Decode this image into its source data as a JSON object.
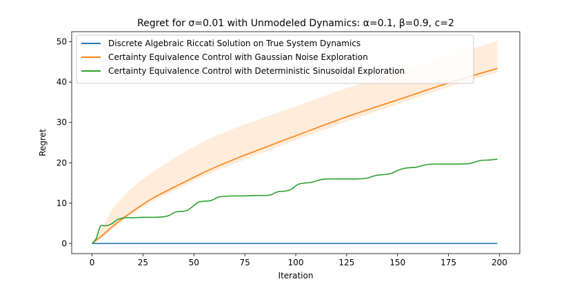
{
  "chart_data": {
    "type": "line",
    "title": "Regret for σ=0.01 with Unmodeled Dynamics: α=0.1, β=0.9, c=2",
    "xlabel": "Iteration",
    "ylabel": "Regret",
    "xlim": [
      -10,
      210
    ],
    "ylim": [
      -2.5,
      52.5
    ],
    "xticks": [
      0,
      25,
      50,
      75,
      100,
      125,
      150,
      175,
      200
    ],
    "yticks": [
      0,
      10,
      20,
      30,
      40,
      50
    ],
    "grid": false,
    "legend_position": "upper-left",
    "series": [
      {
        "name": "Discrete Algebraic Riccati Solution on True System Dynamics",
        "color": "#1f77b4",
        "x": [
          0,
          199
        ],
        "y": [
          0,
          0
        ]
      },
      {
        "name": "Certainty Equivalence Control with Gaussian Noise Exploration",
        "color": "#ff7f0e",
        "x": [
          0,
          2,
          5,
          10,
          15,
          20,
          25,
          30,
          40,
          50,
          60,
          75,
          100,
          125,
          150,
          175,
          199
        ],
        "y": [
          0,
          0.8,
          2.0,
          4.2,
          6.2,
          8.0,
          9.7,
          11.3,
          13.9,
          16.4,
          18.8,
          21.9,
          26.7,
          31.4,
          35.6,
          39.8,
          43.4
        ],
        "band_upper": [
          0,
          1.5,
          4.0,
          8.5,
          11.5,
          14.0,
          16.0,
          17.8,
          21.0,
          24.0,
          26.5,
          29.5,
          34.0,
          38.5,
          42.5,
          46.5,
          50.2
        ],
        "band_lower": [
          0,
          0.5,
          1.5,
          3.5,
          5.5,
          7.4,
          9.0,
          10.5,
          13.0,
          15.5,
          17.8,
          20.8,
          25.6,
          30.2,
          34.5,
          38.8,
          42.4
        ]
      },
      {
        "name": "Certainty Equivalence Control with Deterministic Sinusoidal Exploration",
        "color": "#2ca02c",
        "x": [
          0,
          2,
          4,
          6,
          8,
          10,
          12,
          14,
          16,
          20,
          25,
          30,
          35,
          38,
          40,
          42,
          45,
          47,
          50,
          52,
          55,
          58,
          60,
          62,
          65,
          70,
          75,
          80,
          85,
          88,
          90,
          92,
          95,
          98,
          100,
          102,
          105,
          108,
          112,
          115,
          118,
          120,
          125,
          130,
          135,
          138,
          141,
          144,
          147,
          150,
          153,
          156,
          159,
          162,
          165,
          168,
          171,
          175,
          180,
          185,
          188,
          191,
          195,
          199
        ],
        "y": [
          0,
          1.2,
          4.2,
          4.4,
          4.5,
          5.0,
          5.8,
          6.2,
          6.4,
          6.4,
          6.5,
          6.5,
          6.6,
          7.0,
          7.6,
          7.9,
          8.0,
          8.3,
          9.4,
          10.2,
          10.5,
          10.6,
          11.0,
          11.5,
          11.7,
          11.8,
          11.8,
          11.9,
          11.9,
          12.1,
          12.6,
          12.9,
          13.0,
          13.5,
          14.3,
          14.8,
          15.0,
          15.2,
          15.8,
          16.0,
          16.0,
          16.0,
          16.0,
          16.0,
          16.2,
          16.7,
          17.0,
          17.1,
          17.4,
          18.1,
          18.6,
          18.8,
          18.9,
          19.3,
          19.6,
          19.7,
          19.7,
          19.7,
          19.7,
          19.8,
          20.2,
          20.6,
          20.7,
          20.9
        ]
      }
    ]
  }
}
